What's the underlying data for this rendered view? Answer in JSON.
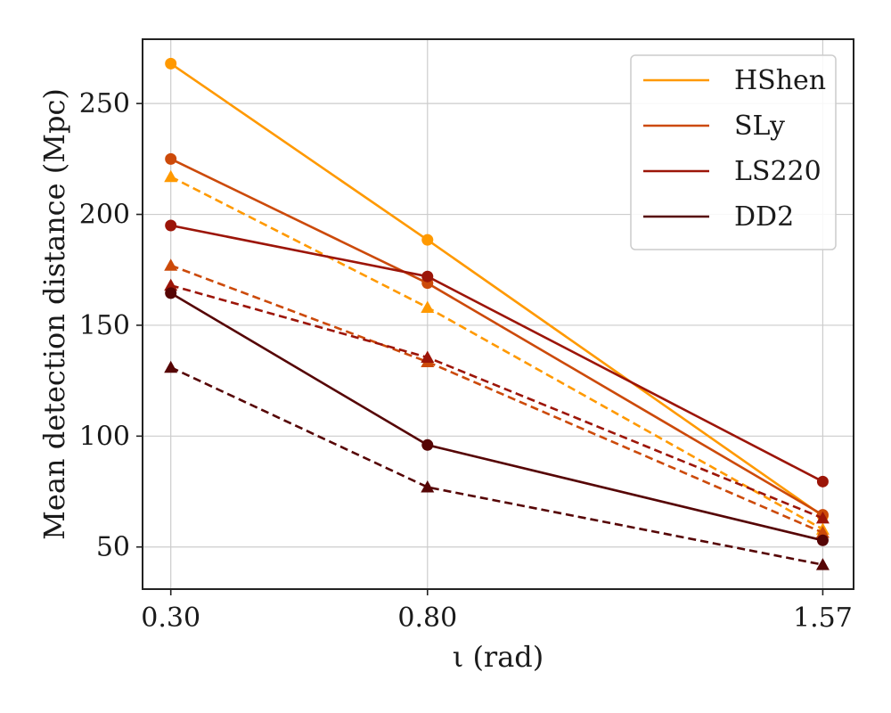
{
  "chart_data": {
    "type": "line",
    "title": "",
    "xlabel": "ι (rad)",
    "ylabel": "Mean detection distance (Mpc)",
    "x": [
      0.3,
      0.8,
      1.57
    ],
    "x_tick_labels": [
      "0.30",
      "0.80",
      "1.57"
    ],
    "y_ticks": [
      50,
      100,
      150,
      200,
      250
    ],
    "xlim": [
      0.245,
      1.63
    ],
    "ylim": [
      31,
      279
    ],
    "grid": true,
    "legend_position": "top-right",
    "series": [
      {
        "name": "HShen",
        "color": "#ff9900",
        "line_style": "solid",
        "marker": "circle",
        "values": [
          268,
          188.5,
          64
        ]
      },
      {
        "name": "HShen",
        "color": "#ff9900",
        "line_style": "dashed",
        "marker": "triangle",
        "values": [
          217,
          158,
          58
        ]
      },
      {
        "name": "SLy",
        "color": "#cc4a0a",
        "line_style": "solid",
        "marker": "circle",
        "values": [
          225,
          169,
          64.5
        ]
      },
      {
        "name": "SLy",
        "color": "#cc4a0a",
        "line_style": "dashed",
        "marker": "triangle",
        "values": [
          177,
          133.5,
          56.5
        ]
      },
      {
        "name": "LS220",
        "color": "#9c1508",
        "line_style": "solid",
        "marker": "circle",
        "values": [
          195,
          172,
          79.5
        ]
      },
      {
        "name": "LS220",
        "color": "#9c1508",
        "line_style": "dashed",
        "marker": "triangle",
        "values": [
          168,
          135.5,
          63
        ]
      },
      {
        "name": "DD2",
        "color": "#560505",
        "line_style": "solid",
        "marker": "circle",
        "values": [
          164.5,
          96,
          53
        ]
      },
      {
        "name": "DD2",
        "color": "#560505",
        "line_style": "dashed",
        "marker": "triangle",
        "values": [
          131,
          77,
          42
        ]
      }
    ],
    "legend_entries": [
      {
        "name": "HShen",
        "color": "#ff9900"
      },
      {
        "name": "SLy",
        "color": "#cc4a0a"
      },
      {
        "name": "LS220",
        "color": "#9c1508"
      },
      {
        "name": "DD2",
        "color": "#560505"
      }
    ]
  }
}
